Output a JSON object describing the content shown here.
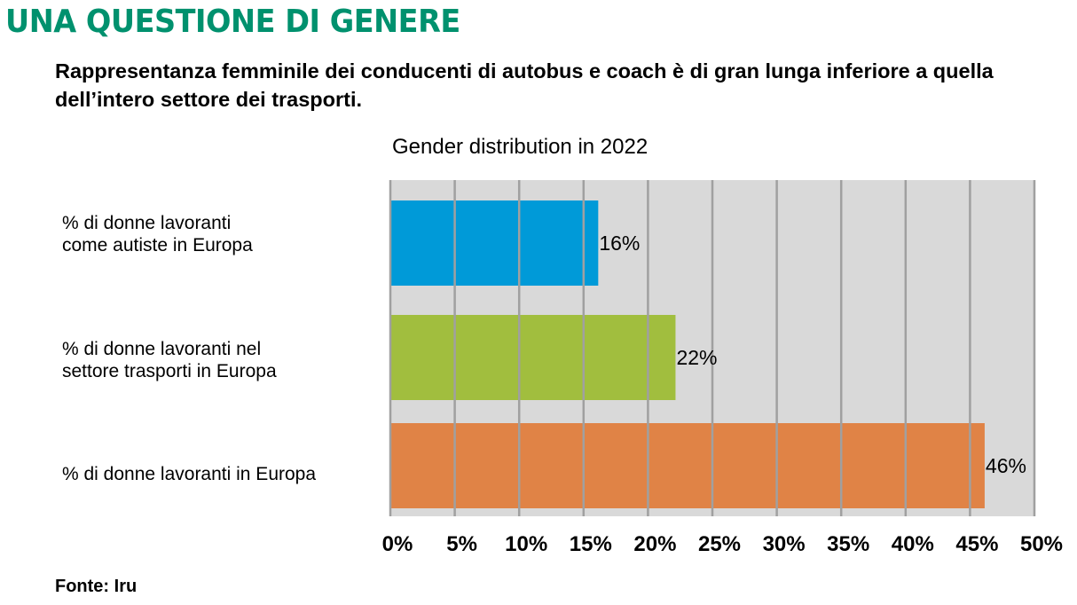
{
  "header": {
    "headline": "UNA QUESTIONE DI GENERE",
    "subtitle": "Rappresentanza femminile dei conducenti di autobus e coach è di gran lunga inferiore a quella dell’intero settore dei trasporti."
  },
  "footer": {
    "source": "Fonte: Iru"
  },
  "chart_data": {
    "type": "bar",
    "orientation": "horizontal",
    "title": "Gender distribution in 2022",
    "xlabel": "",
    "ylabel": "",
    "xlim": [
      0,
      50
    ],
    "x_ticks": [
      0,
      5,
      10,
      15,
      20,
      25,
      30,
      35,
      40,
      45,
      50
    ],
    "x_tick_labels": [
      "0%",
      "5%",
      "10%",
      "15%",
      "20%",
      "25%",
      "30%",
      "35%",
      "40%",
      "45%",
      "50%"
    ],
    "grid": "vertical",
    "plot_background": "#d9d9d9",
    "categories": [
      "% di donne lavoranti\ncome autiste in Europa",
      "% di donne lavoranti nel\nsettore trasporti in Europa",
      "% di donne lavoranti in Europa"
    ],
    "values": [
      16,
      22,
      46
    ],
    "data_labels": [
      "16%",
      "22%",
      "46%"
    ],
    "colors": [
      "#009ad8",
      "#a1be3e",
      "#e08346"
    ]
  }
}
